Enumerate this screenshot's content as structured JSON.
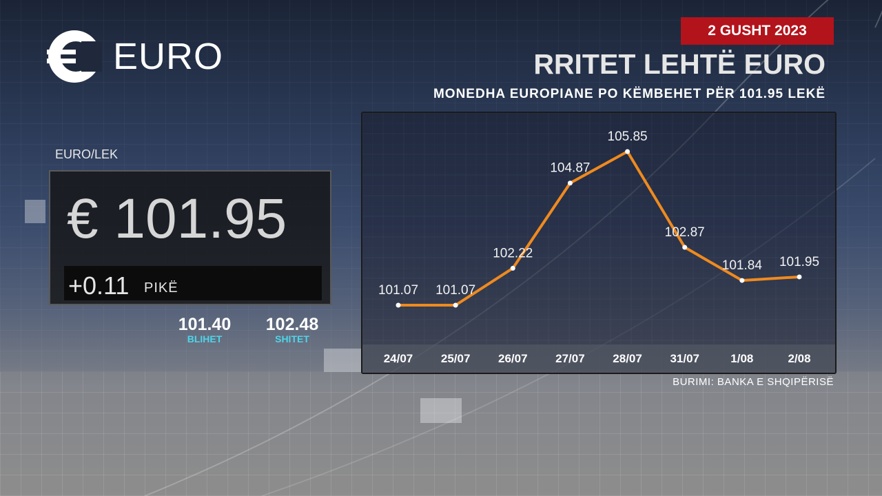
{
  "logo": {
    "icon": "euro-icon",
    "text": "EURO"
  },
  "date_badge": "2 GUSHT 2023",
  "headline": "RRITET LEHTË EURO",
  "subheadline": "MONEDHA EUROPIANE PO KËMBEHET PËR 101.95 LEKË",
  "pair_label": "EURO/LEK",
  "rate": "€ 101.95",
  "change": {
    "value": "+0.11",
    "unit": "PIKË"
  },
  "buy": {
    "value": "101.40",
    "label": "BLIHET"
  },
  "sell": {
    "value": "102.48",
    "label": "SHITET"
  },
  "source": "BURIMI: BANKA E SHQIPËRISË",
  "colors": {
    "line": "#ef8a1f",
    "date_badge": "#b3131b",
    "label_accent": "#4fd5e8"
  },
  "chart_data": {
    "type": "line",
    "categories": [
      "24/07",
      "25/07",
      "26/07",
      "27/07",
      "28/07",
      "31/07",
      "1/08",
      "2/08"
    ],
    "values": [
      101.07,
      101.07,
      102.22,
      104.87,
      105.85,
      102.87,
      101.84,
      101.95
    ],
    "data_labels": [
      "101.07",
      "101.07",
      "102.22",
      "104.87",
      "105.85",
      "102.87",
      "101.84",
      "101.95"
    ],
    "title": "",
    "xlabel": "",
    "ylabel": "",
    "grid": true
  }
}
